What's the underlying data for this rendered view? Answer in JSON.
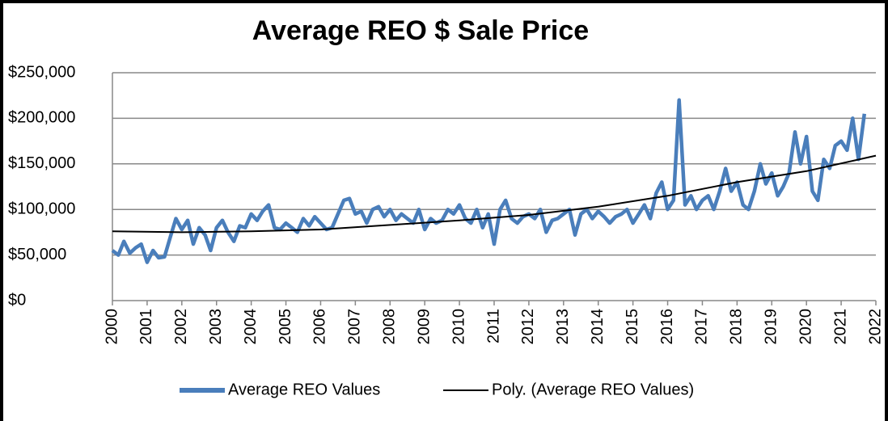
{
  "chart_data": {
    "type": "line",
    "title": "Average REO $ Sale Price",
    "xlim": [
      2000,
      2022
    ],
    "xticks": [
      2000,
      2001,
      2002,
      2003,
      2004,
      2005,
      2006,
      2007,
      2008,
      2009,
      2010,
      2011,
      2012,
      2013,
      2014,
      2015,
      2016,
      2017,
      2018,
      2019,
      2020,
      2021,
      2022
    ],
    "ylim": [
      0,
      250000
    ],
    "yticks": [
      {
        "value": 0,
        "label": "$0"
      },
      {
        "value": 50000,
        "label": "$50,000"
      },
      {
        "value": 100000,
        "label": "$100,000"
      },
      {
        "value": 150000,
        "label": "$150,000"
      },
      {
        "value": 200000,
        "label": "$200,000"
      },
      {
        "value": 250000,
        "label": "$250,000"
      }
    ],
    "grid": true,
    "legend": "bottom",
    "series": [
      {
        "name": "Average REO Values",
        "color": "#4a7ebb",
        "x": [
          2000,
          2000.17,
          2000.33,
          2000.5,
          2000.67,
          2000.83,
          2001,
          2001.17,
          2001.33,
          2001.5,
          2001.67,
          2001.83,
          2002,
          2002.17,
          2002.33,
          2002.5,
          2002.67,
          2002.83,
          2003,
          2003.17,
          2003.33,
          2003.5,
          2003.67,
          2003.83,
          2004,
          2004.17,
          2004.33,
          2004.5,
          2004.67,
          2004.83,
          2005,
          2005.17,
          2005.33,
          2005.5,
          2005.67,
          2005.83,
          2006,
          2006.17,
          2006.33,
          2006.5,
          2006.67,
          2006.83,
          2007,
          2007.17,
          2007.33,
          2007.5,
          2007.67,
          2007.83,
          2008,
          2008.17,
          2008.33,
          2008.5,
          2008.67,
          2008.83,
          2009,
          2009.17,
          2009.33,
          2009.5,
          2009.67,
          2009.83,
          2010,
          2010.17,
          2010.33,
          2010.5,
          2010.67,
          2010.83,
          2011,
          2011.17,
          2011.33,
          2011.5,
          2011.67,
          2011.83,
          2012,
          2012.17,
          2012.33,
          2012.5,
          2012.67,
          2012.83,
          2013,
          2013.17,
          2013.33,
          2013.5,
          2013.67,
          2013.83,
          2014,
          2014.17,
          2014.33,
          2014.5,
          2014.67,
          2014.83,
          2015,
          2015.17,
          2015.33,
          2015.5,
          2015.67,
          2015.83,
          2016,
          2016.17,
          2016.33,
          2016.5,
          2016.67,
          2016.83,
          2017,
          2017.17,
          2017.33,
          2017.5,
          2017.67,
          2017.83,
          2018,
          2018.17,
          2018.33,
          2018.5,
          2018.67,
          2018.83,
          2019,
          2019.17,
          2019.33,
          2019.5,
          2019.67,
          2019.83,
          2020,
          2020.17,
          2020.33,
          2020.5,
          2020.67,
          2020.83,
          2021,
          2021.17,
          2021.33,
          2021.5,
          2021.67
        ],
        "values": [
          55000,
          50000,
          65000,
          52000,
          58000,
          62000,
          42000,
          55000,
          47000,
          48000,
          70000,
          90000,
          78000,
          88000,
          62000,
          80000,
          72000,
          55000,
          80000,
          88000,
          75000,
          65000,
          82000,
          80000,
          95000,
          88000,
          98000,
          105000,
          80000,
          78000,
          85000,
          80000,
          75000,
          90000,
          82000,
          92000,
          85000,
          78000,
          80000,
          95000,
          110000,
          112000,
          95000,
          98000,
          85000,
          100000,
          103000,
          92000,
          100000,
          88000,
          95000,
          90000,
          85000,
          100000,
          78000,
          90000,
          85000,
          88000,
          100000,
          95000,
          105000,
          90000,
          85000,
          100000,
          80000,
          95000,
          62000,
          100000,
          110000,
          90000,
          85000,
          92000,
          95000,
          90000,
          100000,
          75000,
          88000,
          90000,
          95000,
          100000,
          72000,
          95000,
          100000,
          90000,
          98000,
          92000,
          85000,
          92000,
          95000,
          100000,
          85000,
          95000,
          105000,
          90000,
          118000,
          130000,
          100000,
          110000,
          220000,
          105000,
          115000,
          100000,
          110000,
          115000,
          100000,
          120000,
          145000,
          120000,
          130000,
          105000,
          100000,
          120000,
          150000,
          128000,
          140000,
          115000,
          125000,
          140000,
          185000,
          150000,
          180000,
          120000,
          110000,
          155000,
          145000,
          170000,
          175000,
          165000,
          200000,
          155000,
          205000
        ]
      },
      {
        "name": "Poly. (Average REO Values)",
        "color": "#000000",
        "x": [
          2000,
          2002,
          2004,
          2006,
          2008,
          2010,
          2012,
          2014,
          2016,
          2018,
          2020,
          2022
        ],
        "values": [
          76000,
          75000,
          76000,
          78000,
          83000,
          88000,
          94000,
          103000,
          115000,
          130000,
          142000,
          159000
        ]
      }
    ]
  }
}
